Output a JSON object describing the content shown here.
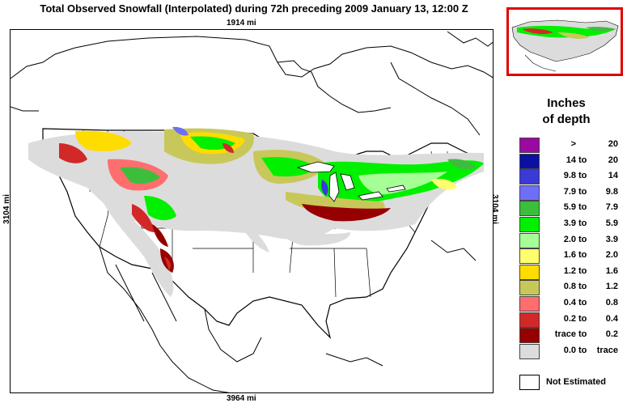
{
  "title": "Total Observed Snowfall (Interpolated) during 72h preceding 2009 January 13, 12:00 Z",
  "dimensions": {
    "top": "1914 mi",
    "bottom": "3964 mi",
    "left": "3104 mi",
    "right": "3104 mi"
  },
  "legend": {
    "title_line1": "Inches",
    "title_line2": "of depth",
    "rows": [
      {
        "from": ">",
        "sep": "",
        "to": "20",
        "color": "#9a0aa0"
      },
      {
        "from": "14",
        "sep": "to",
        "to": "20",
        "color": "#0a10a0"
      },
      {
        "from": "9.8",
        "sep": "to",
        "to": "14",
        "color": "#3a3ad6"
      },
      {
        "from": "7.9",
        "sep": "to",
        "to": "9.8",
        "color": "#6e6ef6"
      },
      {
        "from": "5.9",
        "sep": "to",
        "to": "7.9",
        "color": "#3cbe3c"
      },
      {
        "from": "3.9",
        "sep": "to",
        "to": "5.9",
        "color": "#00f000"
      },
      {
        "from": "2.0",
        "sep": "to",
        "to": "3.9",
        "color": "#a6ff96"
      },
      {
        "from": "1.6",
        "sep": "to",
        "to": "2.0",
        "color": "#ffff6e"
      },
      {
        "from": "1.2",
        "sep": "to",
        "to": "1.6",
        "color": "#ffdc00"
      },
      {
        "from": "0.8",
        "sep": "to",
        "to": "1.2",
        "color": "#c8c85a"
      },
      {
        "from": "0.4",
        "sep": "to",
        "to": "0.8",
        "color": "#ff6e6e"
      },
      {
        "from": "0.2",
        "sep": "to",
        "to": "0.4",
        "color": "#d22828"
      },
      {
        "from": "trace",
        "sep": "to",
        "to": "0.2",
        "color": "#960000"
      },
      {
        "from": "0.0",
        "sep": "to",
        "to": "trace",
        "color": "#dcdcdc"
      }
    ],
    "not_estimated": "Not Estimated"
  },
  "colors": {
    "inset_border": "#e00000",
    "background": "#ffffff",
    "boundary": "#000000"
  }
}
